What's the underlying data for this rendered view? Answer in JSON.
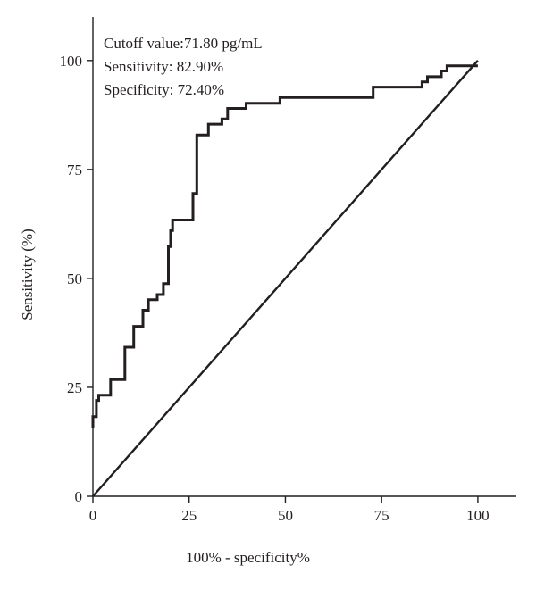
{
  "chart_data": {
    "type": "line",
    "title": "",
    "xlabel": "100% - specificity%",
    "ylabel": "Sensitivity (%)",
    "xlim": [
      0,
      110
    ],
    "ylim": [
      0,
      110
    ],
    "xticks": [
      "0",
      "25",
      "50",
      "75",
      "100"
    ],
    "yticks": [
      "0",
      "25",
      "50",
      "75",
      "100"
    ],
    "xtick_values": [
      0,
      25,
      50,
      75,
      100
    ],
    "ytick_values": [
      0,
      25,
      50,
      75,
      100
    ],
    "grid": false,
    "annotations": [
      "Cutoff value:71.80 pg/mL",
      "Sensitivity: 82.90%",
      "Specificity: 72.40%"
    ],
    "series": [
      {
        "style": "step",
        "x": [
          0,
          0,
          0.9,
          0.9,
          1.5,
          1.5,
          4.6,
          4.6,
          5.3,
          5.3,
          8.3,
          8.3,
          10.6,
          10.6,
          13,
          13,
          14.4,
          14.4,
          16.7,
          16.7,
          18.3,
          18.3,
          19.6,
          19.6,
          20.2,
          20.2,
          20.7,
          20.7,
          26,
          26,
          27,
          27,
          30,
          30,
          33.5,
          33.5,
          35,
          35,
          39.8,
          39.8,
          48.6,
          48.6,
          72.8,
          72.8,
          85.5,
          85.5,
          86.9,
          86.9,
          90.5,
          90.5,
          92,
          92,
          100
        ],
        "y": [
          15.7,
          18.3,
          18.3,
          22,
          22,
          23.2,
          23.2,
          26.8,
          26.8,
          26.8,
          26.8,
          34.2,
          34.2,
          39,
          39,
          42.7,
          42.7,
          45.1,
          45.1,
          46.3,
          46.3,
          48.8,
          48.8,
          57.3,
          57.3,
          61,
          61,
          63.4,
          63.4,
          69.5,
          69.5,
          82.9,
          82.9,
          85.4,
          85.4,
          86.6,
          86.6,
          89,
          89,
          90.2,
          90.2,
          91.5,
          91.5,
          93.9,
          93.9,
          95.1,
          95.1,
          96.3,
          96.3,
          97.6,
          97.6,
          98.8,
          98.8
        ]
      },
      {
        "style": "reference",
        "x": [
          0,
          100
        ],
        "y": [
          0,
          100
        ]
      }
    ]
  }
}
